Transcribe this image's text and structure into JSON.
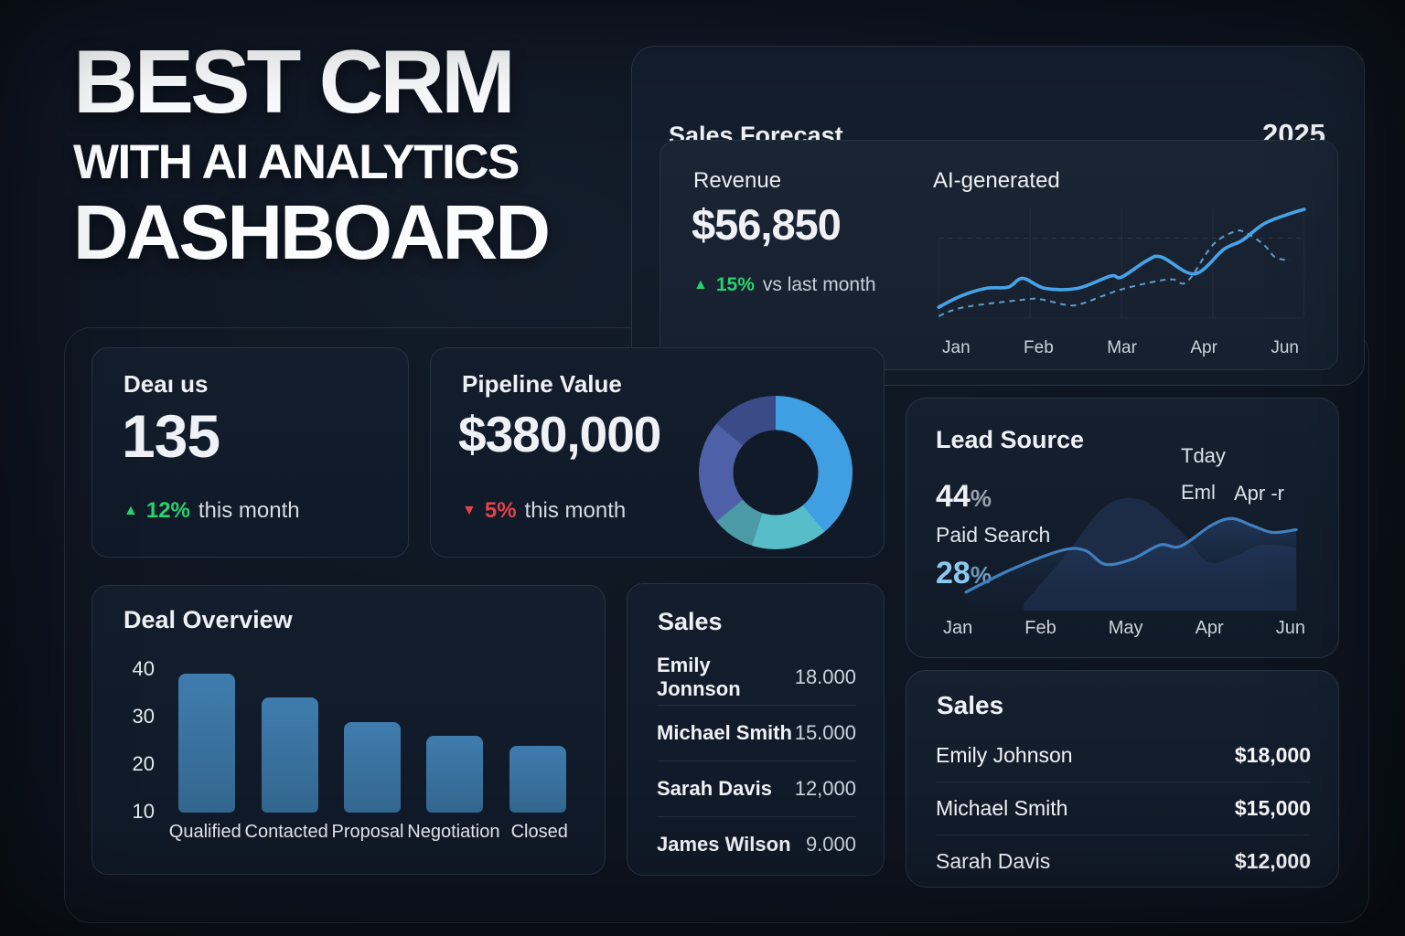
{
  "hero": {
    "line1": "BEST CRM",
    "line2": "WITH AI ANALYTICS",
    "line3": "DASHBOARD"
  },
  "sales_forecast": {
    "title": "Sales Forecast",
    "year": "2025",
    "revenue_label": "Revenue",
    "revenue_value": "$56,850",
    "delta_value": "15%",
    "delta_suffix": "vs last month",
    "legend": "AI-generated",
    "months": [
      "Jan",
      "Feb",
      "Mar",
      "Apr",
      "Jun"
    ]
  },
  "deal_status": {
    "title": "Deaı us",
    "value": "135",
    "delta_value": "12%",
    "delta_suffix": "this month"
  },
  "pipeline": {
    "title": "Pipeline Value",
    "value": "$380,000",
    "delta_value": "5%",
    "delta_suffix": "this month"
  },
  "deal_overview": {
    "title": "Deal Overview"
  },
  "lead_source": {
    "title": "Lead Source",
    "primary_value": "44",
    "primary_unit": "%",
    "primary_label": "Paid Search",
    "secondary_value": "28",
    "secondary_unit": "%",
    "legend": [
      "Tday",
      "Eml",
      "Apr -r"
    ],
    "months": [
      "Jan",
      "Feb",
      "May",
      "Apr",
      "Jun"
    ]
  },
  "sales_mid": {
    "title": "Sales",
    "rows": [
      {
        "name": "Emily Jonnson",
        "value": "18.000"
      },
      {
        "name": "Michael Smith",
        "value": "15.000"
      },
      {
        "name": "Sarah Davis",
        "value": "12,000"
      },
      {
        "name": "James Wilson",
        "value": "9.000"
      }
    ]
  },
  "sales_right": {
    "title": "Sales",
    "rows": [
      {
        "name": "Emily Johnson",
        "value": "$18,000"
      },
      {
        "name": "Michael Smith",
        "value": "$15,000"
      },
      {
        "name": "Sarah Davis",
        "value": "$12,000"
      }
    ]
  },
  "colors": {
    "background": "#0d1420",
    "panel": "#131d2b",
    "accent_blue": "#47a3e8",
    "green": "#27d36f",
    "red": "#e2434c",
    "light_blue_text": "#8cc8ee",
    "bar_blue": "#3a72a2"
  },
  "chart_data": [
    {
      "id": "sales_forecast_line",
      "type": "line",
      "title": "Sales Forecast",
      "legend_entries": [
        "AI-generated"
      ],
      "x_labels": [
        "Jan",
        "Feb",
        "Mar",
        "Apr",
        "Jun"
      ],
      "grid": "faint vertical lines per month, dashed horizontal reference line",
      "series": [
        {
          "name": "actual",
          "style": "solid",
          "color": "#47a3e8",
          "points_pct": [
            [
              0,
              92
            ],
            [
              6,
              82
            ],
            [
              13,
              75
            ],
            [
              19,
              74
            ],
            [
              23,
              66
            ],
            [
              29,
              75
            ],
            [
              38,
              75
            ],
            [
              47,
              64
            ],
            [
              50,
              65
            ],
            [
              57,
              50
            ],
            [
              61,
              47
            ],
            [
              70,
              62
            ],
            [
              78,
              40
            ],
            [
              83,
              32
            ],
            [
              89,
              17
            ],
            [
              96,
              8
            ],
            [
              100,
              4
            ]
          ]
        },
        {
          "name": "forecast",
          "style": "dashed",
          "color": "#6fb0df",
          "points_pct": [
            [
              0,
              100
            ],
            [
              7,
              92
            ],
            [
              24,
              85
            ],
            [
              28,
              85
            ],
            [
              35,
              90
            ],
            [
              39,
              89
            ],
            [
              49,
              77
            ],
            [
              59,
              69
            ],
            [
              64,
              67
            ],
            [
              68,
              69
            ],
            [
              75,
              36
            ],
            [
              81,
              24
            ],
            [
              84,
              25
            ],
            [
              89,
              36
            ],
            [
              92,
              47
            ],
            [
              96,
              50
            ]
          ]
        }
      ]
    },
    {
      "id": "pipeline_donut",
      "type": "pie",
      "donut": true,
      "values_pct": [
        39,
        16,
        9,
        22,
        14
      ],
      "colors": [
        "#3f9fe2",
        "#56bdc9",
        "#4c9aa5",
        "#4f5fa8",
        "#3a4b88"
      ]
    },
    {
      "id": "deal_overview_bars",
      "type": "bar",
      "title": "Deal Overview",
      "categories": [
        "Qualified",
        "Contacted",
        "Proposal",
        "Negotiation",
        "Closed"
      ],
      "values": [
        39,
        34,
        29,
        26,
        24
      ],
      "ylim": [
        10,
        40
      ],
      "yticks": [
        40,
        30,
        20,
        10
      ],
      "bar_color": "#3a72a2"
    },
    {
      "id": "lead_source_area",
      "type": "area",
      "title": "Lead Source",
      "x_labels": [
        "Jan",
        "Feb",
        "May",
        "Apr",
        "Jun"
      ],
      "series": [
        {
          "name": "background-area",
          "style": "area",
          "color": "#1d2d49",
          "points_pct": [
            [
              20,
              100
            ],
            [
              32,
              66
            ],
            [
              44,
              30
            ],
            [
              55,
              26
            ],
            [
              66,
              48
            ],
            [
              74,
              70
            ],
            [
              82,
              66
            ],
            [
              90,
              58
            ],
            [
              100,
              60
            ]
          ]
        },
        {
          "name": "paid-search",
          "style": "line-area",
          "color": "#4180bf",
          "points_pct": [
            [
              3,
              92
            ],
            [
              16,
              76
            ],
            [
              31,
              62
            ],
            [
              38,
              62
            ],
            [
              44,
              72
            ],
            [
              52,
              68
            ],
            [
              60,
              58
            ],
            [
              66,
              59
            ],
            [
              75,
              44
            ],
            [
              81,
              39
            ],
            [
              87,
              44
            ],
            [
              93,
              49
            ],
            [
              100,
              47
            ]
          ]
        }
      ]
    }
  ]
}
